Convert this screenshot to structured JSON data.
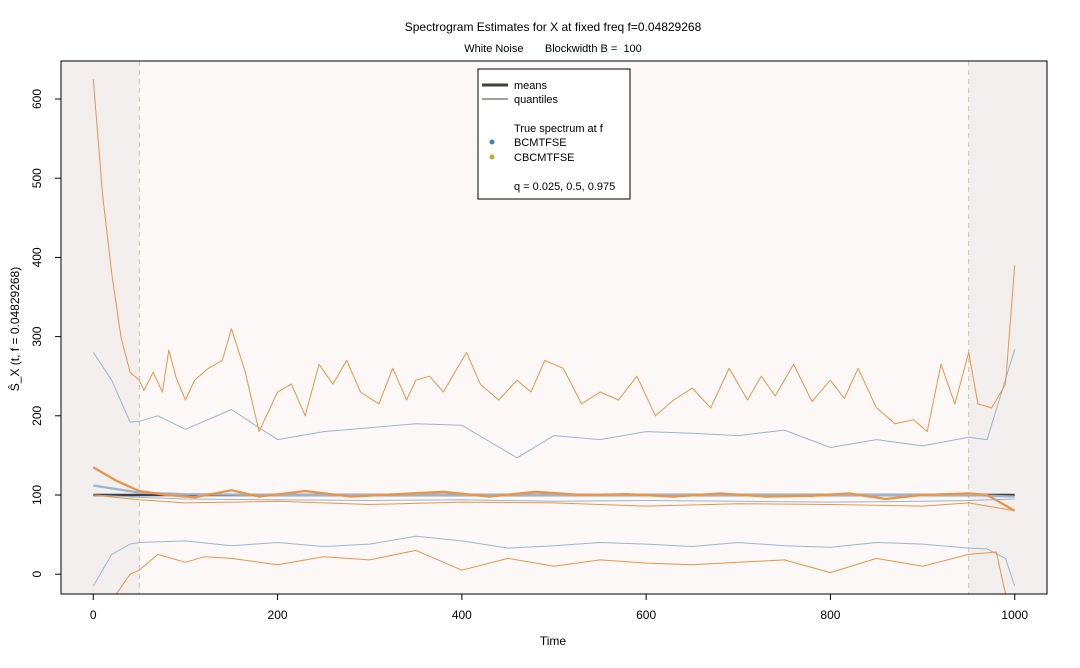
{
  "chart_data": {
    "type": "line",
    "title": "Spectrogram Estimates for X at fixed freq f=0.04829268",
    "subtitle": "White Noise       Blockwidth B =  100",
    "xlabel": "Time",
    "ylabel": "Ŝ_X (t, f = 0.04829268)",
    "xlim": [
      -35,
      1035
    ],
    "ylim": [
      -25,
      648
    ],
    "x_ticks": [
      0,
      200,
      400,
      600,
      800,
      1000
    ],
    "y_ticks": [
      0,
      100,
      200,
      300,
      400,
      500,
      600
    ],
    "shaded_regions": [
      [
        -35,
        50
      ],
      [
        950,
        1035
      ]
    ],
    "vlines": [
      50,
      950
    ],
    "grid": false,
    "legend": {
      "position": "top-center",
      "entries": [
        {
          "label": "means",
          "style": "thick-line",
          "color": "#4a3f35"
        },
        {
          "label": "quantiles",
          "style": "thin-line",
          "color": "#4a3f35"
        },
        {
          "label": "True spectrum at f",
          "style": "none",
          "color": ""
        },
        {
          "label": "BCMTFSE",
          "style": "dot",
          "color": "#3a82c4"
        },
        {
          "label": "CBCMTFSE",
          "style": "dot",
          "color": "#c3a83a"
        },
        {
          "label": "q = 0.025, 0.5, 0.975",
          "style": "none",
          "color": ""
        }
      ]
    },
    "colors": {
      "true_spectrum": "#404040",
      "bcmtfse": "#9db4cc",
      "cbcmtfse": "#e8954a",
      "shade": "#f3efee",
      "inner_bg": "#fcf8f7",
      "vline": "#c8c8a8"
    },
    "series": [
      {
        "name": "True spectrum at f",
        "role": "true",
        "x": [
          0,
          1000
        ],
        "y": [
          100,
          100
        ]
      },
      {
        "name": "BCMTFSE",
        "role": "mean",
        "x": [
          0,
          50,
          100,
          200,
          300,
          400,
          500,
          600,
          700,
          800,
          900,
          950,
          1000
        ],
        "y": [
          112,
          103,
          101,
          100,
          100,
          100,
          100,
          100,
          100,
          100,
          100,
          100,
          98
        ]
      },
      {
        "name": "CBCMTFSE",
        "role": "mean",
        "x": [
          0,
          25,
          50,
          80,
          110,
          150,
          180,
          230,
          280,
          330,
          380,
          430,
          480,
          530,
          580,
          630,
          680,
          730,
          780,
          820,
          860,
          900,
          950,
          970,
          1000
        ],
        "y": [
          135,
          118,
          105,
          100,
          97,
          106,
          98,
          105,
          98,
          101,
          104,
          98,
          104,
          100,
          101,
          98,
          102,
          98,
          99,
          102,
          95,
          100,
          102,
          100,
          80
        ]
      },
      {
        "name": "BCMTFSE",
        "role": "q0.025",
        "x": [
          0,
          20,
          40,
          50,
          100,
          150,
          200,
          250,
          300,
          350,
          400,
          450,
          500,
          550,
          600,
          650,
          700,
          750,
          800,
          850,
          900,
          950,
          970,
          990,
          1000
        ],
        "y": [
          -15,
          25,
          38,
          40,
          42,
          36,
          40,
          35,
          38,
          48,
          42,
          33,
          36,
          40,
          38,
          35,
          40,
          36,
          34,
          40,
          38,
          33,
          32,
          20,
          -15
        ]
      },
      {
        "name": "BCMTFSE",
        "role": "q0.5",
        "x": [
          0,
          50,
          100,
          200,
          300,
          400,
          500,
          600,
          700,
          800,
          900,
          950,
          1000
        ],
        "y": [
          100,
          97,
          95,
          94,
          93,
          94,
          92,
          93,
          92,
          91,
          92,
          93,
          95
        ]
      },
      {
        "name": "BCMTFSE",
        "role": "q0.975",
        "x": [
          0,
          20,
          40,
          50,
          70,
          100,
          150,
          180,
          200,
          250,
          300,
          350,
          400,
          460,
          500,
          550,
          600,
          650,
          700,
          750,
          800,
          850,
          900,
          950,
          970,
          1000
        ],
        "y": [
          280,
          245,
          192,
          193,
          200,
          183,
          208,
          185,
          170,
          180,
          185,
          190,
          188,
          147,
          175,
          170,
          180,
          178,
          175,
          182,
          160,
          170,
          162,
          173,
          170,
          284
        ]
      },
      {
        "name": "CBCMTFSE",
        "role": "q0.025",
        "x": [
          25,
          40,
          50,
          70,
          100,
          120,
          150,
          200,
          250,
          300,
          350,
          400,
          450,
          500,
          550,
          600,
          650,
          700,
          750,
          800,
          850,
          900,
          950,
          980,
          990
        ],
        "y": [
          -25,
          0,
          5,
          25,
          15,
          22,
          20,
          12,
          22,
          18,
          30,
          5,
          20,
          10,
          18,
          14,
          12,
          15,
          18,
          2,
          20,
          10,
          25,
          28,
          -25
        ]
      },
      {
        "name": "CBCMTFSE",
        "role": "q0.5",
        "x": [
          0,
          50,
          100,
          200,
          300,
          400,
          500,
          600,
          700,
          800,
          900,
          950,
          1000
        ],
        "y": [
          100,
          94,
          90,
          92,
          88,
          91,
          90,
          86,
          89,
          88,
          86,
          90,
          80
        ]
      },
      {
        "name": "CBCMTFSE",
        "role": "q0.975",
        "x": [
          0,
          10,
          20,
          30,
          40,
          50,
          55,
          65,
          75,
          82,
          90,
          100,
          110,
          125,
          140,
          150,
          165,
          180,
          200,
          215,
          230,
          245,
          260,
          275,
          290,
          310,
          325,
          340,
          350,
          365,
          380,
          395,
          405,
          420,
          440,
          460,
          475,
          490,
          510,
          530,
          550,
          570,
          590,
          610,
          630,
          650,
          670,
          690,
          710,
          725,
          740,
          760,
          780,
          800,
          815,
          830,
          850,
          870,
          890,
          905,
          920,
          935,
          950,
          960,
          975,
          990,
          1000
        ],
        "y": [
          625,
          480,
          380,
          300,
          255,
          245,
          232,
          255,
          230,
          283,
          248,
          220,
          245,
          260,
          270,
          310,
          255,
          180,
          230,
          240,
          200,
          265,
          240,
          270,
          230,
          215,
          260,
          220,
          245,
          250,
          230,
          260,
          280,
          240,
          220,
          245,
          230,
          270,
          260,
          215,
          230,
          220,
          250,
          200,
          220,
          235,
          210,
          260,
          220,
          250,
          225,
          265,
          218,
          245,
          222,
          260,
          210,
          190,
          195,
          180,
          265,
          215,
          280,
          215,
          210,
          240,
          390
        ]
      }
    ]
  }
}
